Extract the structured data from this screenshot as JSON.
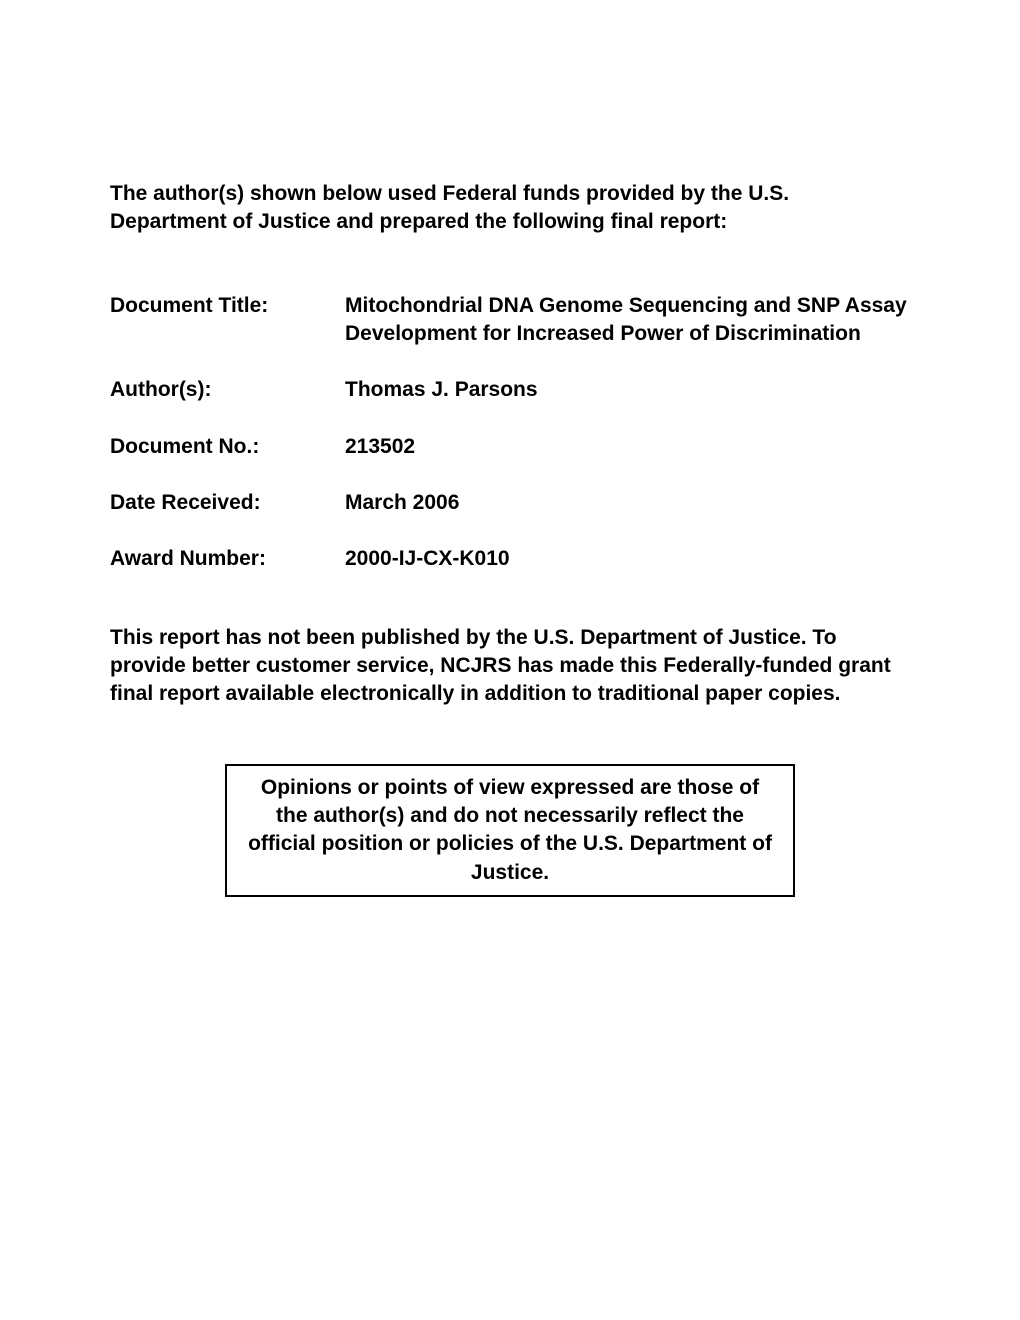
{
  "intro": "The author(s) shown below used Federal funds provided by the U.S. Department of Justice and prepared the following final report:",
  "metadata": {
    "title_label": "Document Title:",
    "title_value": "Mitochondrial DNA Genome Sequencing and SNP Assay Development for Increased Power of Discrimination",
    "author_label": "Author(s):",
    "author_value": "Thomas J. Parsons",
    "docno_label": "Document No.:",
    "docno_value": "213502",
    "date_label": "Date Received:",
    "date_value": "March 2006",
    "award_label": "Award Number:",
    "award_value": "2000-IJ-CX-K010"
  },
  "disclosure": "This report has not been published by the U.S. Department of Justice. To provide better customer service, NCJRS has made this Federally-funded grant final report available electronically in addition to traditional paper copies.",
  "opinion_box": "Opinions or points of view expressed are those of the author(s) and do not necessarily reflect the official position or policies of the U.S. Department of Justice."
}
